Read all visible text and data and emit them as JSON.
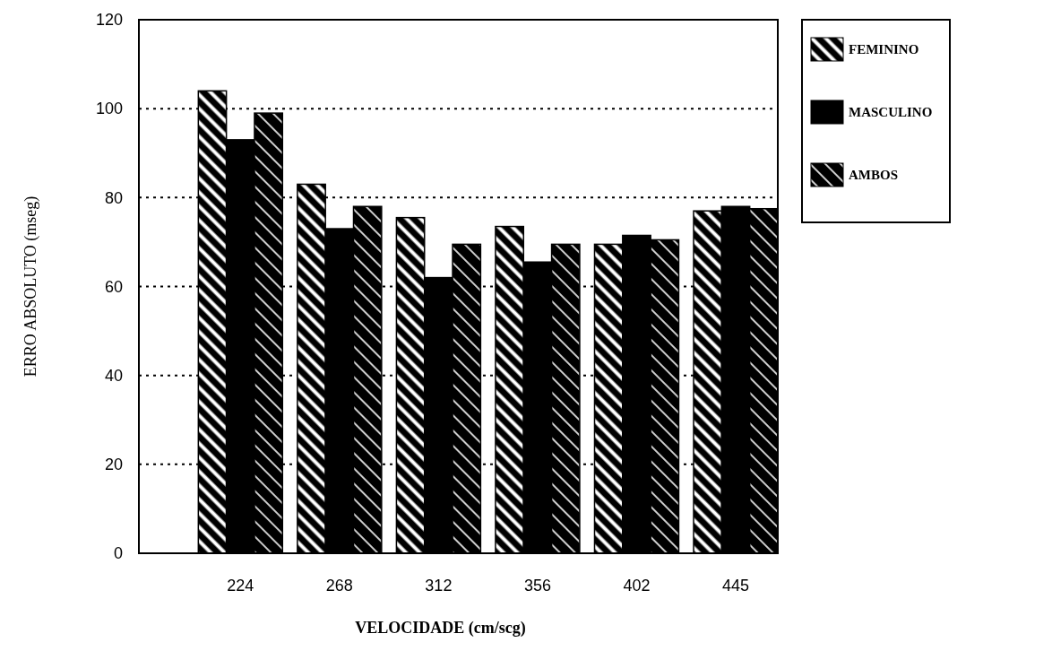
{
  "chart_data": {
    "type": "bar",
    "xlabel": "VELOCIDADE (cm/scg)",
    "ylabel": "ERRO ABSOLUTO (mseg)",
    "categories": [
      "224",
      "268",
      "312",
      "356",
      "402",
      "445"
    ],
    "series": [
      {
        "name": "FEMININO",
        "color": "#000000",
        "values": [
          104,
          83,
          75.5,
          73.5,
          69.5,
          77
        ]
      },
      {
        "name": "MASCULINO",
        "color": "#000000",
        "values": [
          93,
          73,
          62,
          65.5,
          71.5,
          78
        ]
      },
      {
        "name": "AMBOS",
        "color": "#000000",
        "values": [
          99,
          78,
          69.5,
          69.5,
          70.5,
          77.5
        ]
      }
    ],
    "ylim": [
      0,
      120
    ],
    "yticks": [
      0,
      20,
      40,
      60,
      80,
      100,
      120
    ],
    "grid": "y",
    "legend": "top right"
  }
}
